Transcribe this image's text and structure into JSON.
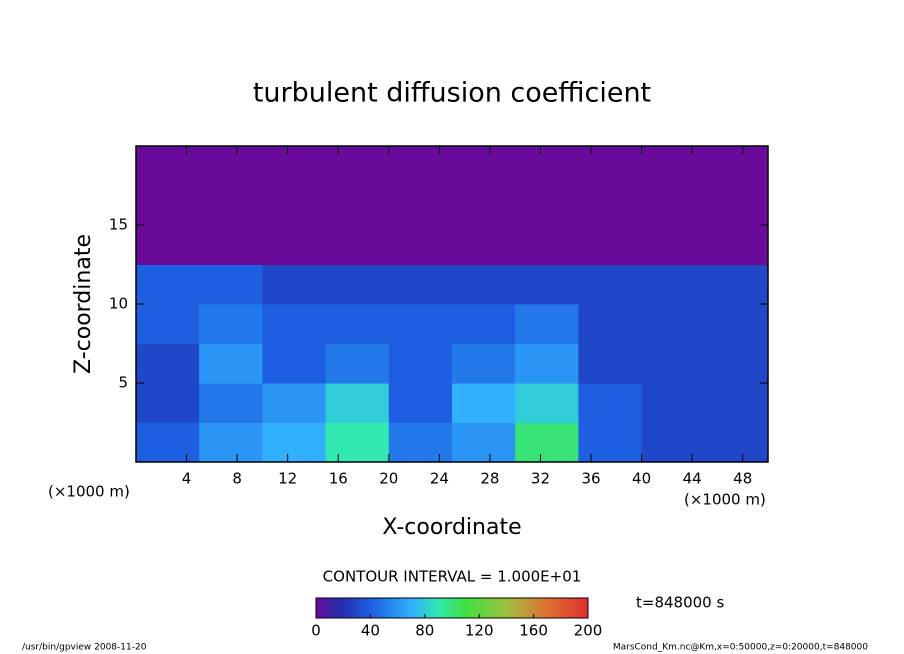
{
  "chart_data": {
    "type": "heatmap",
    "title": "turbulent diffusion coefficient",
    "xlabel": "X-coordinate",
    "ylabel": "Z-coordinate",
    "xunit": "(×1000 m)",
    "yunit": "(×1000 m)",
    "xlim": [
      0,
      50
    ],
    "ylim": [
      0,
      20
    ],
    "xticks": [
      4,
      8,
      12,
      16,
      20,
      24,
      28,
      32,
      36,
      40,
      44,
      48
    ],
    "yticks": [
      5,
      10,
      15
    ],
    "x": [
      2.5,
      7.5,
      12.5,
      17.5,
      22.5,
      27.5,
      32.5,
      37.5,
      42.5,
      47.5
    ],
    "y": [
      1.25,
      3.75,
      6.25,
      8.75,
      11.25,
      13.75,
      16.25,
      18.75
    ],
    "z": [
      [
        40,
        60,
        70,
        90,
        50,
        60,
        100,
        40,
        30,
        30
      ],
      [
        30,
        50,
        60,
        80,
        40,
        70,
        80,
        40,
        30,
        30
      ],
      [
        30,
        60,
        40,
        50,
        40,
        50,
        60,
        30,
        30,
        30
      ],
      [
        40,
        50,
        40,
        40,
        40,
        40,
        50,
        30,
        30,
        30
      ],
      [
        40,
        40,
        30,
        30,
        30,
        30,
        30,
        30,
        30,
        30
      ],
      [
        0,
        0,
        0,
        0,
        0,
        0,
        0,
        0,
        0,
        0
      ],
      [
        0,
        0,
        0,
        0,
        0,
        0,
        0,
        0,
        0,
        0
      ],
      [
        0,
        0,
        0,
        0,
        0,
        0,
        0,
        0,
        0,
        0
      ]
    ],
    "colorscale": [
      {
        "value": 0,
        "color": "#6a0a9a"
      },
      {
        "value": 20,
        "color": "#2030b0"
      },
      {
        "value": 40,
        "color": "#1e5ee0"
      },
      {
        "value": 70,
        "color": "#30b0ff"
      },
      {
        "value": 90,
        "color": "#30e8b0"
      },
      {
        "value": 110,
        "color": "#40e040"
      },
      {
        "value": 140,
        "color": "#a0c040"
      },
      {
        "value": 170,
        "color": "#e07030"
      },
      {
        "value": 200,
        "color": "#e03030"
      }
    ],
    "clim": [
      0,
      200
    ],
    "cticks": [
      0,
      40,
      80,
      120,
      160,
      200
    ],
    "contour_note": "CONTOUR INTERVAL = 1.000E+01",
    "time_note": "t=848000 s",
    "footer_left": "/usr/bin/gpview   2008-11-20",
    "footer_right": "MarsCond_Km.nc@Km,x=0:50000,z=0:20000,t=848000"
  }
}
